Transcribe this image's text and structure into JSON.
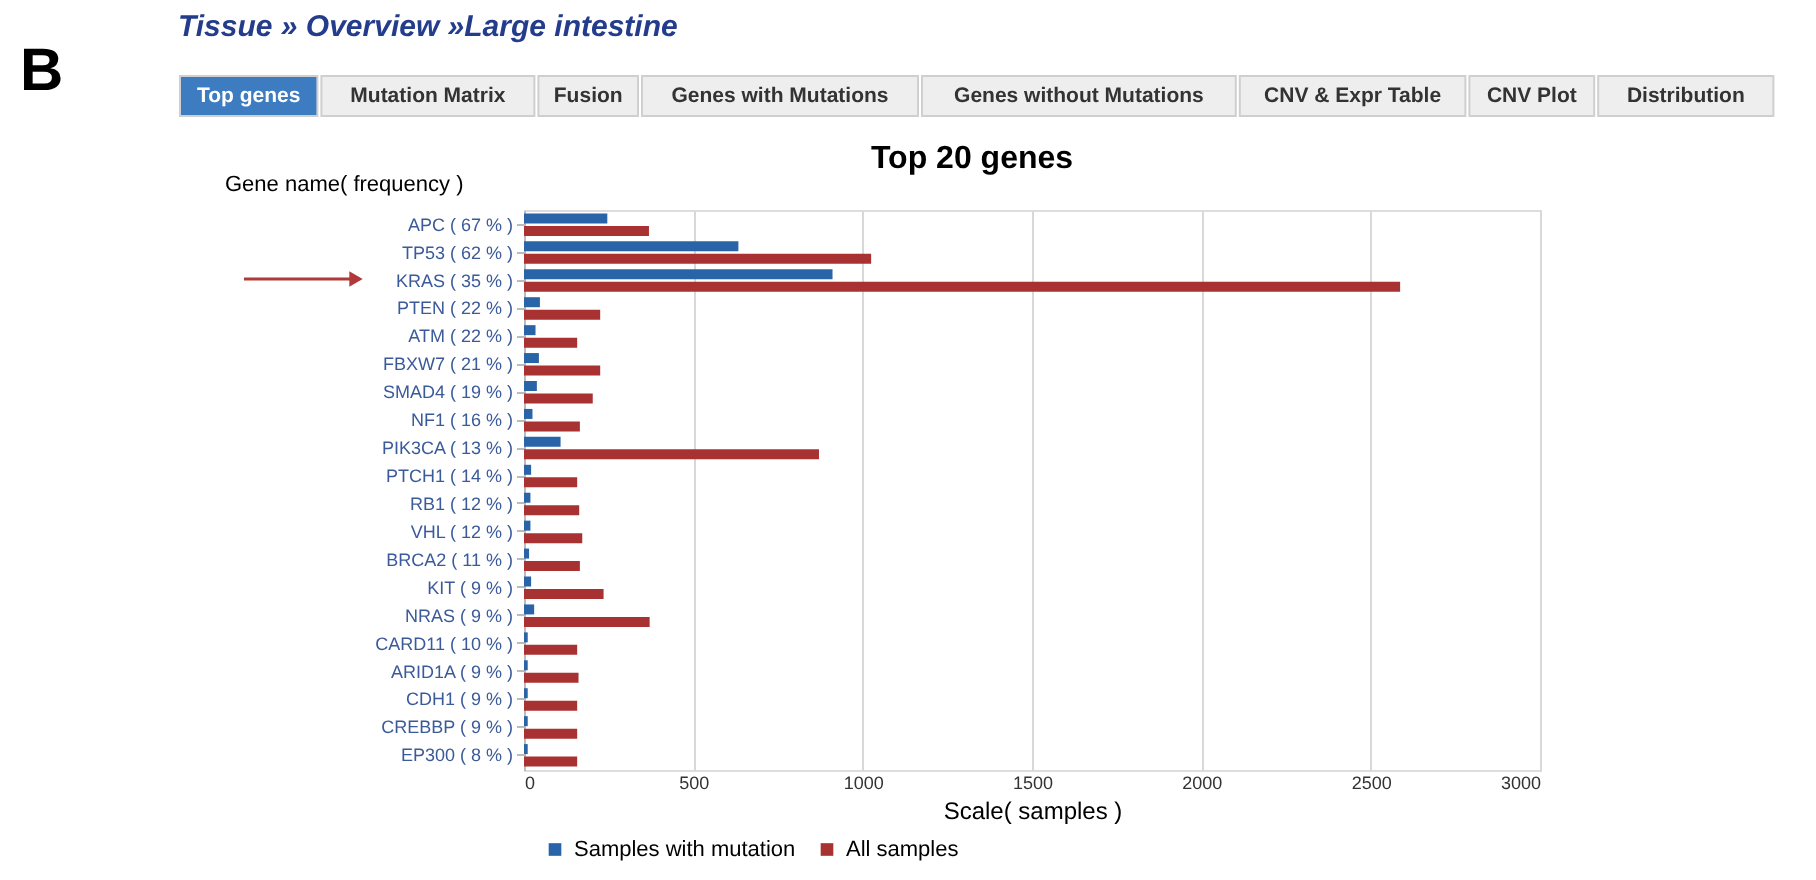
{
  "chart_data": {
    "type": "bar",
    "orientation": "horizontal",
    "title": "Top 20 genes",
    "xlabel": "Scale( samples )",
    "ylabel": "Gene name( frequency )",
    "categories": [
      "APC ( 67 % )",
      "TP53 ( 62 % )",
      "KRAS ( 35 % )",
      "PTEN ( 22 % )",
      "ATM ( 22 % )",
      "FBXW7 ( 21 % )",
      "SMAD4 ( 19 % )",
      "NF1 ( 16 % )",
      "PIK3CA ( 13 % )",
      "PTCH1 ( 14 % )",
      "RB1 ( 12 % )",
      "VHL ( 12 % )",
      "BRCA2 ( 11 % )",
      "KIT ( 9 % )",
      "NRAS ( 9 % )",
      "CARD11 ( 10 % )",
      "ARID1A ( 9 % )",
      "CDH1 ( 9 % )",
      "CREBBP ( 9 % )",
      "EP300 ( 8 % )"
    ],
    "series": [
      {
        "name": "Samples with mutation",
        "color": "#2a64a8",
        "values": [
          246,
          633,
          911,
          47,
          34,
          44,
          38,
          25,
          108,
          21,
          19,
          19,
          15,
          21,
          30,
          11,
          11,
          11,
          11,
          11
        ]
      },
      {
        "name": "All samples",
        "color": "#a83232",
        "values": [
          369,
          1025,
          2587,
          225,
          157,
          225,
          203,
          165,
          871,
          157,
          163,
          172,
          165,
          235,
          371,
          157,
          161,
          157,
          157,
          157
        ]
      }
    ],
    "xlim": [
      0,
      3000
    ],
    "xticks": [
      0,
      500,
      1000,
      1500,
      2000,
      2500,
      3000
    ],
    "grid": "x",
    "legend": "bottom left",
    "annotations": [
      "B",
      "Tissue » Overview »Large intestine",
      "Top genes",
      "Mutation Matrix",
      "Fusion",
      "Genes with Mutations",
      "Genes without Mutations",
      "CNV & Expr Table",
      "CNV Plot",
      "Distribution"
    ]
  }
}
